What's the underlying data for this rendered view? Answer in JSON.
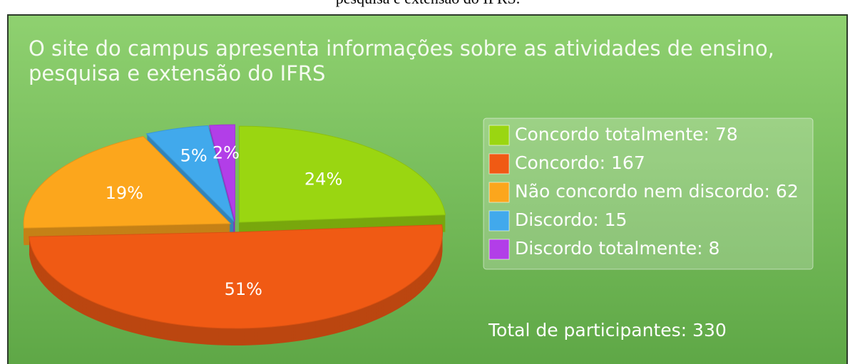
{
  "caption": "pesquisa e extensão do IFRS.",
  "chart_data": {
    "type": "pie",
    "title": [
      "O site do campus apresenta informações sobre as atividades de ensino,",
      "pesquisa e extensão do IFRS"
    ],
    "categories": [
      "Concordo totalmente: 78",
      "Concordo: 167",
      "Não concordo nem discordo: 62",
      "Discordo: 15",
      "Discordo totalmente: 8"
    ],
    "values": [
      24,
      51,
      19,
      5,
      2
    ],
    "value_labels": [
      "24%",
      "51%",
      "19%",
      "5%",
      "2%"
    ],
    "colors": [
      "#9ad611",
      "#f05a14",
      "#fca61c",
      "#41a9ec",
      "#b23ee8"
    ],
    "legend": "right",
    "footer": "Total de participantes: 330"
  }
}
